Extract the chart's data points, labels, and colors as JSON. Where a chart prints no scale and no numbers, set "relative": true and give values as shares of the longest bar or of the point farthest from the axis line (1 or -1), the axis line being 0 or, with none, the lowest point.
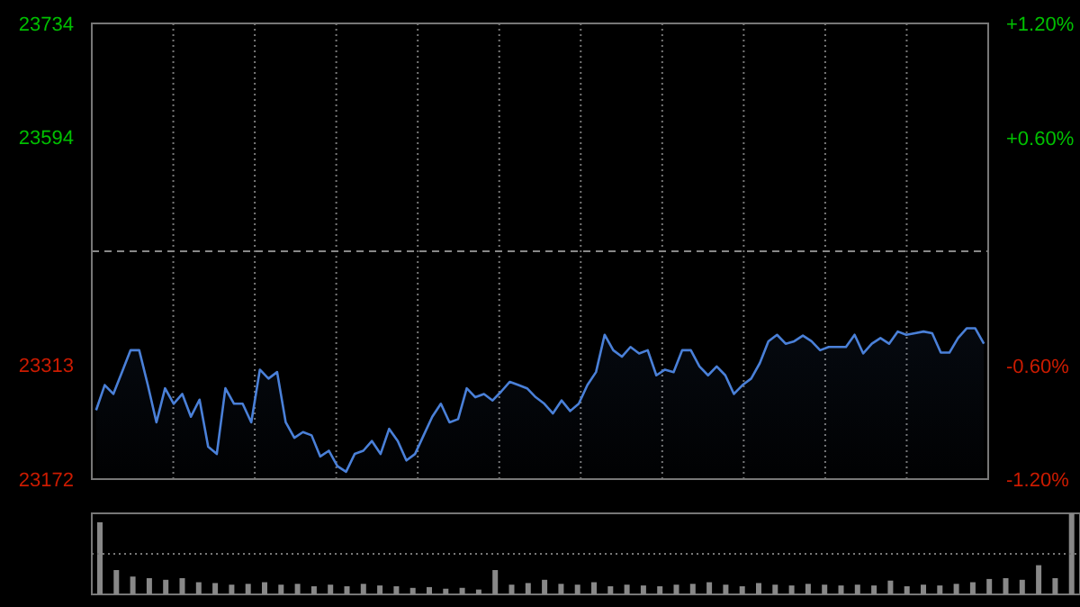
{
  "chart_data": [
    {
      "type": "area",
      "categories": [
        null,
        null,
        null,
        null,
        null,
        null,
        null,
        null,
        null,
        null,
        null,
        null,
        null,
        null,
        null,
        null,
        null,
        null,
        null,
        null,
        null,
        null,
        null,
        null,
        null,
        null,
        null,
        null,
        null,
        null,
        null,
        null,
        null,
        null,
        null,
        null,
        null,
        null,
        null,
        null,
        null,
        null,
        null,
        null,
        null,
        null,
        null,
        null,
        null,
        null,
        null,
        null,
        null,
        null,
        null,
        null,
        null,
        null,
        null,
        null,
        null,
        null,
        null,
        null,
        null,
        null,
        null,
        null,
        null,
        null,
        null,
        null,
        null,
        null,
        null,
        null,
        null,
        null,
        null,
        null,
        null,
        null,
        null,
        null,
        null,
        null,
        null,
        null,
        null,
        null,
        null,
        null,
        null,
        null,
        null,
        null,
        null,
        null,
        null,
        null,
        null,
        null,
        null,
        null
      ],
      "series": [
        {
          "color": "#4a80d8",
          "values": [
            23257,
            23288,
            23277,
            23304,
            23331,
            23331,
            23288,
            23242,
            23284,
            23265,
            23277,
            23249,
            23270,
            23212,
            23203,
            23284,
            23265,
            23265,
            23242,
            23307,
            23296,
            23304,
            23242,
            23223,
            23230,
            23226,
            23200,
            23207,
            23188,
            23181,
            23203,
            23207,
            23219,
            23203,
            23234,
            23219,
            23195,
            23203,
            23226,
            23249,
            23265,
            23242,
            23246,
            23284,
            23273,
            23277,
            23269,
            23280,
            23292,
            23288,
            23284,
            23273,
            23265,
            23253,
            23269,
            23256,
            23265,
            23288,
            23304,
            23350,
            23331,
            23323,
            23335,
            23327,
            23331,
            23300,
            23307,
            23304,
            23331,
            23331,
            23311,
            23300,
            23311,
            23300,
            23277,
            23288,
            23296,
            23315,
            23342,
            23350,
            23339,
            23342,
            23349,
            23342,
            23331,
            23335,
            23335,
            23335,
            23350,
            23327,
            23339,
            23346,
            23339,
            23354,
            23350,
            23352,
            23354,
            23352,
            23328,
            23328,
            23346,
            23358,
            23358,
            23339
          ]
        }
      ],
      "ylim": [
        23172,
        23734
      ],
      "yticks": [
        23172,
        23313,
        23594,
        23734
      ],
      "y2lim": [
        -1.2,
        1.2
      ],
      "y2ticks": [
        {
          "value": 1.2,
          "label": "+1.20%"
        },
        {
          "value": 0.6,
          "label": "+0.60%"
        },
        {
          "value": -0.6,
          "label": "-0.60%"
        },
        {
          "value": -1.2,
          "label": "-1.20%"
        }
      ],
      "ref_lines": [
        {
          "axis": "y",
          "value": 23453,
          "color": "#888888",
          "line_style": "dashed"
        }
      ],
      "grid": true,
      "tick_labels": "y"
    },
    {
      "type": "bar",
      "relative": true,
      "tick_labels": false,
      "ref_lines": [
        {
          "axis": "y",
          "value": 0.5,
          "color": "#777777",
          "line_style": "dotted"
        }
      ],
      "categories": [
        null,
        null,
        null,
        null,
        null,
        null,
        null,
        null,
        null,
        null,
        null,
        null,
        null,
        null,
        null,
        null,
        null,
        null,
        null,
        null,
        null,
        null,
        null,
        null,
        null,
        null,
        null,
        null,
        null,
        null,
        null,
        null,
        null,
        null,
        null,
        null,
        null,
        null,
        null,
        null,
        null,
        null,
        null,
        null,
        null,
        null,
        null,
        null,
        null,
        null,
        null,
        null,
        null,
        null,
        null,
        null,
        null,
        null,
        null,
        null
      ],
      "series": [
        {
          "color": "#888888",
          "values": [
            0.89,
            0.3,
            0.22,
            0.2,
            0.18,
            0.2,
            0.15,
            0.14,
            0.12,
            0.13,
            0.15,
            0.12,
            0.13,
            0.1,
            0.12,
            0.1,
            0.13,
            0.11,
            0.1,
            0.08,
            0.09,
            0.07,
            0.08,
            0.06,
            0.3,
            0.12,
            0.14,
            0.18,
            0.13,
            0.12,
            0.15,
            0.1,
            0.12,
            0.11,
            0.1,
            0.12,
            0.13,
            0.15,
            0.12,
            0.1,
            0.14,
            0.12,
            0.11,
            0.13,
            0.12,
            0.11,
            0.12,
            0.11,
            0.17,
            0.1,
            0.12,
            0.11,
            0.13,
            0.15,
            0.19,
            0.2,
            0.18,
            0.36,
            0.2,
            1
          ]
        }
      ]
    }
  ]
}
